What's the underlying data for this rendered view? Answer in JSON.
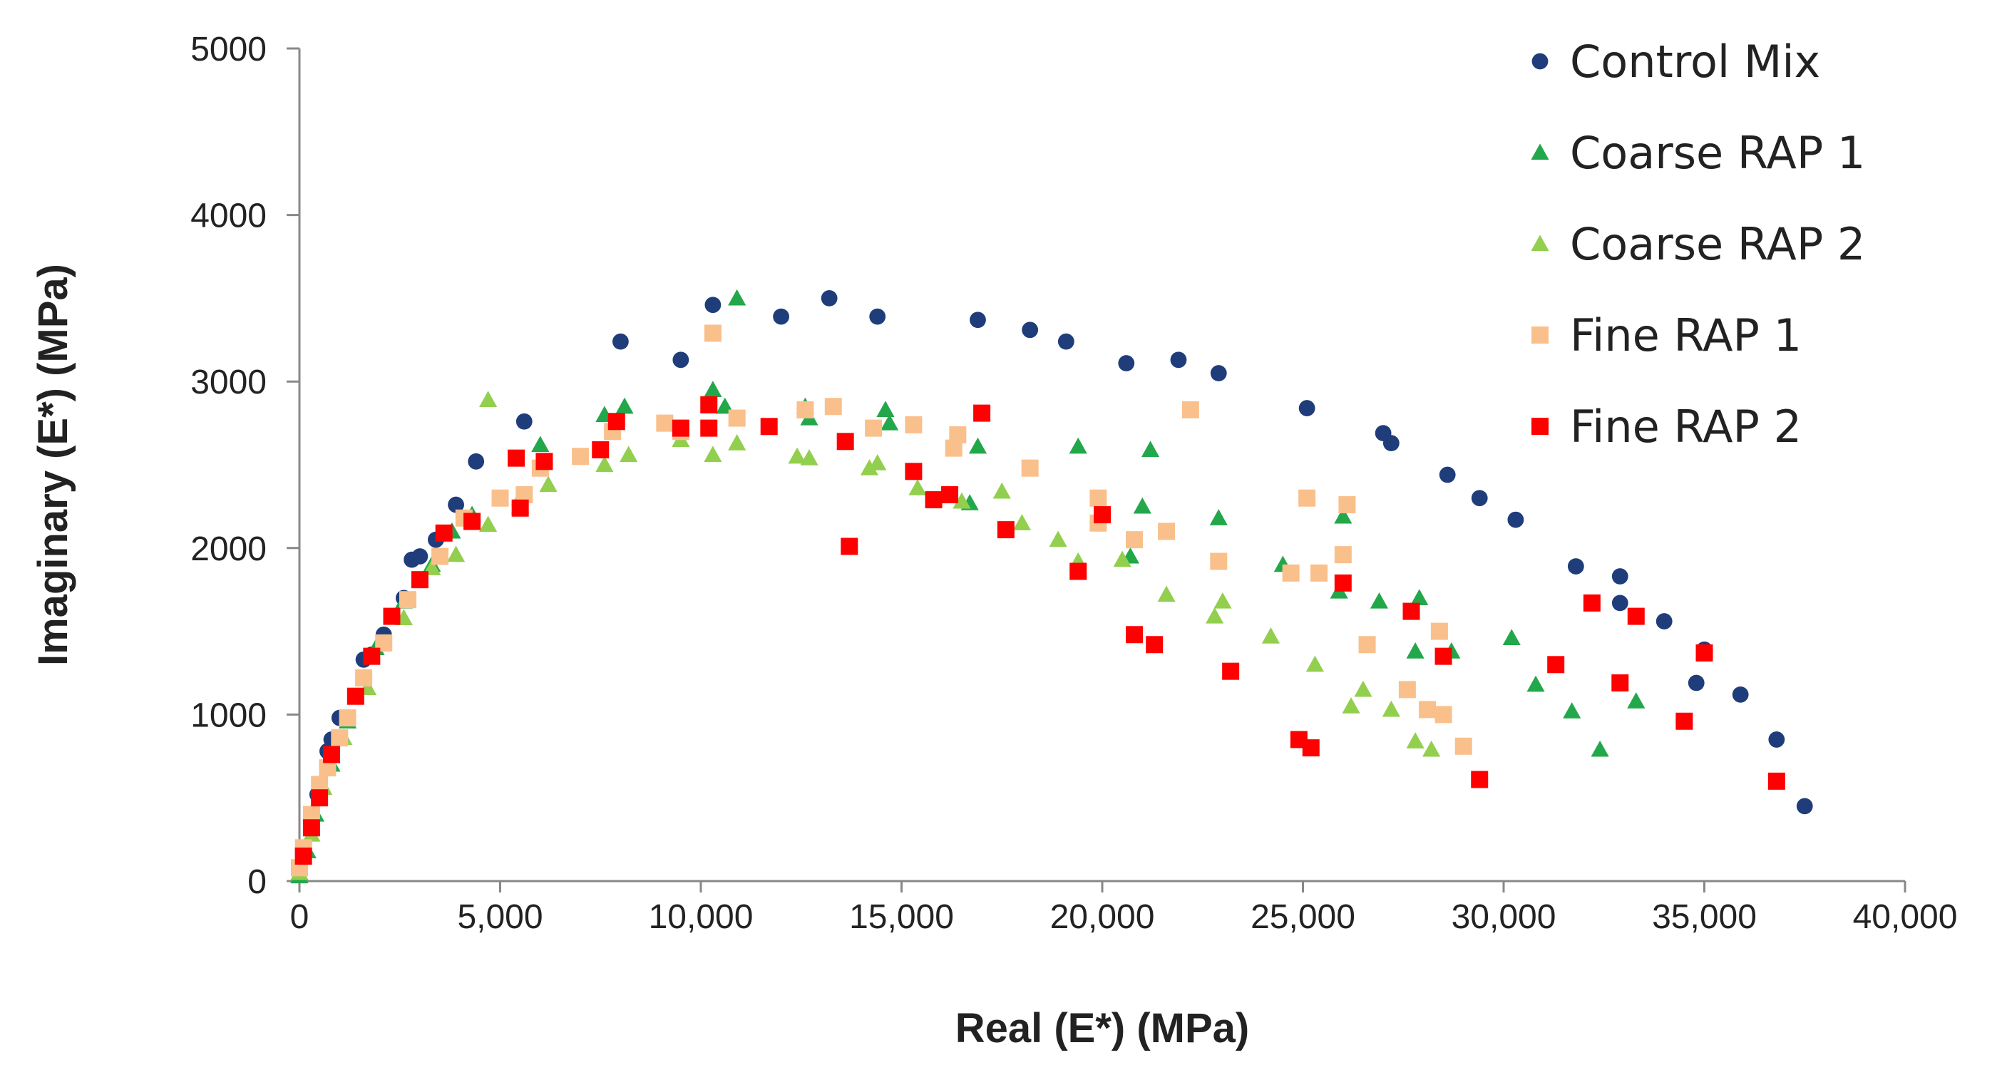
{
  "chart_data": {
    "type": "scatter",
    "title": "",
    "xlabel": "Real (E*) (MPa)",
    "ylabel": "Imaginary (E*)  (MPa)",
    "xlim": [
      0,
      40000
    ],
    "ylim": [
      0,
      5000
    ],
    "x_ticks": [
      0,
      5000,
      10000,
      15000,
      20000,
      25000,
      30000,
      35000,
      40000
    ],
    "x_tick_labels": [
      "0",
      "5,000",
      "10,000",
      "15,000",
      "20,000",
      "25,000",
      "30,000",
      "35,000",
      "40,000"
    ],
    "y_ticks": [
      0,
      1000,
      2000,
      3000,
      4000,
      5000
    ],
    "y_tick_labels": [
      "0",
      "1000",
      "2000",
      "3000",
      "4000",
      "5000"
    ],
    "grid": false,
    "legend_position": "top-right",
    "series": [
      {
        "name": "Control Mix",
        "marker": "circle",
        "color": "#1F3D7A",
        "points": [
          [
            0,
            60
          ],
          [
            100,
            200
          ],
          [
            300,
            350
          ],
          [
            450,
            520
          ],
          [
            700,
            780
          ],
          [
            800,
            850
          ],
          [
            1000,
            980
          ],
          [
            1600,
            1330
          ],
          [
            1800,
            1360
          ],
          [
            2100,
            1480
          ],
          [
            2600,
            1700
          ],
          [
            2800,
            1930
          ],
          [
            3000,
            1950
          ],
          [
            3400,
            2050
          ],
          [
            3900,
            2260
          ],
          [
            4400,
            2520
          ],
          [
            5600,
            2760
          ],
          [
            8000,
            3240
          ],
          [
            9500,
            3130
          ],
          [
            10300,
            3460
          ],
          [
            12000,
            3390
          ],
          [
            13200,
            3500
          ],
          [
            14400,
            3390
          ],
          [
            16900,
            3370
          ],
          [
            18200,
            3310
          ],
          [
            19100,
            3240
          ],
          [
            20600,
            3110
          ],
          [
            21900,
            3130
          ],
          [
            22900,
            3050
          ],
          [
            25100,
            2840
          ],
          [
            27000,
            2690
          ],
          [
            27200,
            2630
          ],
          [
            28600,
            2440
          ],
          [
            29400,
            2300
          ],
          [
            30300,
            2170
          ],
          [
            31800,
            1890
          ],
          [
            32900,
            1830
          ],
          [
            32900,
            1670
          ],
          [
            34000,
            1560
          ],
          [
            34800,
            1190
          ],
          [
            35000,
            1390
          ],
          [
            35900,
            1120
          ],
          [
            36800,
            850
          ],
          [
            37500,
            450
          ]
        ]
      },
      {
        "name": "Coarse RAP 1",
        "marker": "triangle",
        "color": "#22A84A",
        "points": [
          [
            0,
            30
          ],
          [
            200,
            180
          ],
          [
            400,
            400
          ],
          [
            800,
            700
          ],
          [
            1200,
            960
          ],
          [
            1900,
            1400
          ],
          [
            2600,
            1680
          ],
          [
            3300,
            1900
          ],
          [
            3800,
            2100
          ],
          [
            4300,
            2200
          ],
          [
            5500,
            2250
          ],
          [
            6000,
            2620
          ],
          [
            7600,
            2800
          ],
          [
            8100,
            2850
          ],
          [
            10300,
            2950
          ],
          [
            10600,
            2850
          ],
          [
            10900,
            3500
          ],
          [
            12600,
            2850
          ],
          [
            12700,
            2780
          ],
          [
            14600,
            2830
          ],
          [
            14700,
            2750
          ],
          [
            16700,
            2270
          ],
          [
            16900,
            2610
          ],
          [
            19400,
            2610
          ],
          [
            20700,
            1950
          ],
          [
            21000,
            2250
          ],
          [
            21200,
            2590
          ],
          [
            22900,
            2180
          ],
          [
            24500,
            1900
          ],
          [
            25900,
            1740
          ],
          [
            26000,
            2190
          ],
          [
            26900,
            1680
          ],
          [
            27800,
            1380
          ],
          [
            27900,
            1700
          ],
          [
            28700,
            1380
          ],
          [
            30200,
            1460
          ],
          [
            30800,
            1180
          ],
          [
            31700,
            1020
          ],
          [
            32400,
            790
          ],
          [
            33300,
            1080
          ]
        ]
      },
      {
        "name": "Coarse RAP 2",
        "marker": "triangle",
        "color": "#92CF4E",
        "points": [
          [
            0,
            50
          ],
          [
            300,
            280
          ],
          [
            600,
            560
          ],
          [
            1100,
            860
          ],
          [
            1700,
            1160
          ],
          [
            2600,
            1580
          ],
          [
            3300,
            1880
          ],
          [
            3900,
            1960
          ],
          [
            4700,
            2140
          ],
          [
            4700,
            2890
          ],
          [
            5500,
            2300
          ],
          [
            6200,
            2380
          ],
          [
            7600,
            2500
          ],
          [
            8200,
            2560
          ],
          [
            9500,
            2650
          ],
          [
            10300,
            2560
          ],
          [
            10900,
            2630
          ],
          [
            12400,
            2550
          ],
          [
            12700,
            2540
          ],
          [
            14200,
            2480
          ],
          [
            14400,
            2510
          ],
          [
            15400,
            2360
          ],
          [
            16500,
            2280
          ],
          [
            17500,
            2340
          ],
          [
            18000,
            2150
          ],
          [
            18900,
            2050
          ],
          [
            19400,
            1920
          ],
          [
            20500,
            1930
          ],
          [
            21600,
            1720
          ],
          [
            22800,
            1590
          ],
          [
            23000,
            1680
          ],
          [
            24200,
            1470
          ],
          [
            25300,
            1300
          ],
          [
            26200,
            1050
          ],
          [
            26500,
            1150
          ],
          [
            27200,
            1030
          ],
          [
            27800,
            840
          ],
          [
            28200,
            790
          ]
        ]
      },
      {
        "name": "Fine RAP 1",
        "marker": "square",
        "color": "#F9C08C",
        "points": [
          [
            0,
            80
          ],
          [
            100,
            200
          ],
          [
            300,
            400
          ],
          [
            500,
            580
          ],
          [
            700,
            680
          ],
          [
            1000,
            860
          ],
          [
            1200,
            980
          ],
          [
            1600,
            1220
          ],
          [
            2100,
            1430
          ],
          [
            2700,
            1690
          ],
          [
            3500,
            1950
          ],
          [
            4100,
            2180
          ],
          [
            5000,
            2300
          ],
          [
            5600,
            2320
          ],
          [
            6000,
            2480
          ],
          [
            7000,
            2550
          ],
          [
            7800,
            2700
          ],
          [
            9100,
            2750
          ],
          [
            9500,
            2700
          ],
          [
            10300,
            3290
          ],
          [
            10900,
            2780
          ],
          [
            12600,
            2830
          ],
          [
            13300,
            2850
          ],
          [
            14300,
            2720
          ],
          [
            15300,
            2740
          ],
          [
            16300,
            2600
          ],
          [
            16400,
            2680
          ],
          [
            18200,
            2480
          ],
          [
            19900,
            2300
          ],
          [
            19900,
            2150
          ],
          [
            20800,
            2050
          ],
          [
            21600,
            2100
          ],
          [
            22200,
            2830
          ],
          [
            22900,
            1920
          ],
          [
            24700,
            1850
          ],
          [
            25100,
            2300
          ],
          [
            25400,
            1850
          ],
          [
            26000,
            1960
          ],
          [
            26100,
            2260
          ],
          [
            26600,
            1420
          ],
          [
            27600,
            1150
          ],
          [
            28100,
            1030
          ],
          [
            28400,
            1500
          ],
          [
            28500,
            1000
          ],
          [
            29000,
            810
          ]
        ]
      },
      {
        "name": "Fine RAP 2",
        "marker": "square",
        "color": "#FF0000",
        "points": [
          [
            100,
            150
          ],
          [
            300,
            320
          ],
          [
            500,
            500
          ],
          [
            800,
            760
          ],
          [
            1400,
            1110
          ],
          [
            1800,
            1350
          ],
          [
            2300,
            1590
          ],
          [
            3000,
            1810
          ],
          [
            3600,
            2090
          ],
          [
            4300,
            2160
          ],
          [
            5400,
            2540
          ],
          [
            5500,
            2240
          ],
          [
            6100,
            2520
          ],
          [
            7500,
            2590
          ],
          [
            7900,
            2760
          ],
          [
            9500,
            2720
          ],
          [
            10200,
            2720
          ],
          [
            10200,
            2860
          ],
          [
            11700,
            2730
          ],
          [
            13600,
            2640
          ],
          [
            13700,
            2010
          ],
          [
            15300,
            2460
          ],
          [
            15800,
            2290
          ],
          [
            16200,
            2320
          ],
          [
            17600,
            2110
          ],
          [
            17000,
            2810
          ],
          [
            19400,
            1860
          ],
          [
            20000,
            2200
          ],
          [
            20800,
            1480
          ],
          [
            21300,
            1420
          ],
          [
            23200,
            1260
          ],
          [
            24900,
            850
          ],
          [
            25200,
            800
          ],
          [
            26000,
            1790
          ],
          [
            27700,
            1620
          ],
          [
            28500,
            1350
          ],
          [
            29400,
            610
          ],
          [
            31300,
            1300
          ],
          [
            32200,
            1670
          ],
          [
            32900,
            1190
          ],
          [
            33300,
            1590
          ],
          [
            34500,
            960
          ],
          [
            35000,
            1370
          ],
          [
            36800,
            600
          ]
        ]
      }
    ]
  }
}
